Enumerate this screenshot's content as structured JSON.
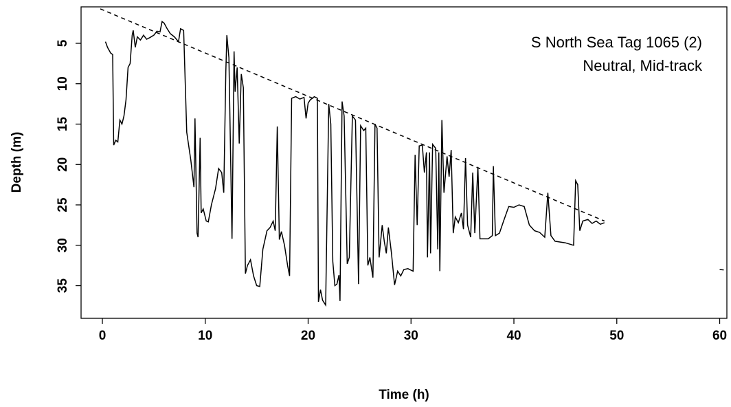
{
  "chart_data": {
    "type": "line",
    "annotations": [
      "S North Sea Tag 1065 (2)",
      "Neutral, Mid-track"
    ],
    "x_label": "Time (h)",
    "y_label": "Depth (m)",
    "xlim": [
      -2.07,
      60.7
    ],
    "ylim": [
      39.04,
      0.49
    ],
    "y_reversed": true,
    "xticks": [
      0,
      10,
      20,
      30,
      40,
      50,
      60
    ],
    "yticks": [
      5,
      10,
      15,
      20,
      25,
      30,
      35
    ],
    "grid": false,
    "series": [
      {
        "name": "depth",
        "color": "#000000",
        "dash": false,
        "x": [
          0.3,
          0.5,
          0.8,
          1.0,
          1.1,
          1.3,
          1.5,
          1.7,
          1.9,
          2.1,
          2.3,
          2.5,
          2.7,
          2.9,
          3.0,
          3.2,
          3.4,
          3.7,
          4.0,
          4.3,
          4.6,
          5.0,
          5.3,
          5.6,
          5.8,
          6.0,
          6.3,
          6.6,
          7.0,
          7.4,
          7.6,
          7.9,
          8.2,
          8.6,
          8.9,
          9.0,
          9.2,
          9.3,
          9.5,
          9.6,
          9.8,
          10.1,
          10.3,
          10.6,
          11.0,
          11.3,
          11.6,
          11.8,
          12.0,
          12.1,
          12.3,
          12.6,
          12.8,
          12.9,
          13.1,
          13.3,
          13.5,
          13.7,
          13.9,
          14.1,
          14.4,
          14.7,
          15.0,
          15.3,
          15.6,
          16.0,
          16.3,
          16.6,
          16.8,
          17.0,
          17.2,
          17.4,
          17.7,
          18.0,
          18.2,
          18.4,
          18.8,
          19.2,
          19.6,
          19.8,
          20.0,
          20.2,
          20.6,
          20.9,
          21.0,
          21.2,
          21.4,
          21.7,
          22.0,
          22.2,
          22.4,
          22.6,
          22.8,
          23.0,
          23.1,
          23.3,
          23.5,
          23.8,
          24.0,
          24.3,
          24.6,
          24.9,
          25.1,
          25.4,
          25.6,
          25.8,
          26.0,
          26.3,
          26.5,
          26.7,
          26.9,
          27.2,
          27.4,
          27.6,
          27.8,
          28.1,
          28.4,
          28.7,
          29.0,
          29.3,
          29.7,
          30.2,
          30.4,
          30.6,
          30.8,
          31.1,
          31.3,
          31.5,
          31.6,
          31.8,
          31.9,
          32.1,
          32.4,
          32.6,
          32.7,
          32.8,
          33.0,
          33.2,
          33.5,
          33.7,
          33.9,
          34.1,
          34.3,
          34.6,
          34.9,
          35.1,
          35.3,
          35.5,
          35.8,
          36.0,
          36.2,
          36.5,
          36.7,
          37.5,
          37.9,
          38.0,
          38.2,
          38.6,
          39.0,
          39.5,
          40.0,
          40.5,
          41.0,
          41.5,
          42.0,
          42.5,
          43.0,
          43.3,
          43.6,
          44.0,
          45.0,
          45.8,
          46.0,
          46.2,
          46.4,
          46.7,
          47.2,
          47.6,
          48.0,
          48.4,
          48.8
        ],
        "values": [
          4.8,
          5.5,
          6.2,
          6.4,
          17.6,
          17.0,
          17.2,
          14.5,
          15.0,
          14.0,
          12.0,
          8.0,
          7.5,
          4.0,
          3.4,
          5.5,
          4.2,
          4.6,
          4.0,
          4.5,
          4.3,
          4.0,
          3.5,
          3.6,
          2.3,
          2.5,
          3.2,
          3.8,
          4.2,
          4.8,
          3.2,
          3.4,
          16.0,
          19.5,
          22.8,
          14.3,
          28.5,
          29.0,
          16.7,
          26.0,
          25.5,
          27.0,
          27.1,
          25.0,
          23.0,
          20.5,
          21.0,
          23.5,
          8.5,
          4.0,
          6.8,
          29.2,
          6.0,
          11.0,
          8.0,
          17.4,
          8.8,
          10.5,
          33.5,
          32.5,
          31.8,
          33.8,
          35.0,
          35.1,
          30.5,
          28.2,
          27.8,
          27.0,
          28.2,
          15.3,
          29.3,
          28.3,
          30.0,
          32.5,
          33.8,
          11.8,
          11.6,
          11.9,
          11.7,
          14.3,
          12.4,
          12.0,
          11.6,
          11.8,
          37.0,
          35.5,
          36.8,
          37.4,
          12.5,
          15.0,
          32.0,
          35.0,
          34.8,
          33.7,
          36.9,
          12.2,
          14.0,
          32.3,
          31.5,
          14.0,
          14.5,
          34.8,
          15.2,
          15.8,
          15.5,
          32.5,
          31.5,
          34.0,
          15.0,
          15.5,
          31.5,
          27.5,
          29.5,
          31.0,
          27.8,
          31.0,
          34.9,
          33.2,
          33.8,
          33.0,
          32.9,
          33.2,
          18.8,
          27.5,
          17.7,
          17.6,
          21.0,
          18.5,
          31.5,
          18.5,
          31.0,
          17.5,
          18.0,
          30.5,
          18.5,
          33.2,
          14.5,
          23.5,
          19.0,
          21.5,
          18.2,
          28.5,
          26.5,
          27.2,
          26.0,
          28.0,
          19.2,
          27.5,
          29.0,
          21.0,
          28.5,
          20.3,
          29.2,
          29.2,
          28.8,
          20.2,
          28.8,
          28.5,
          27.0,
          25.2,
          25.3,
          25.0,
          25.2,
          27.5,
          28.2,
          28.4,
          29.0,
          23.5,
          28.8,
          29.5,
          29.7,
          30.0,
          22.0,
          22.5,
          28.2,
          27.0,
          26.8,
          27.3,
          27.0,
          27.4,
          27.2
        ]
      },
      {
        "name": "trend",
        "color": "#000000",
        "dash": true,
        "x": [
          -0.2,
          48.8,
          null,
          60.0,
          60.7
        ],
        "values": [
          0.74,
          27.0,
          null,
          33.0,
          33.1
        ]
      }
    ]
  }
}
